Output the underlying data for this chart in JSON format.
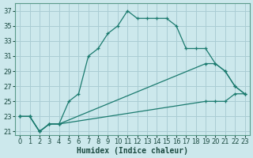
{
  "xlabel": "Humidex (Indice chaleur)",
  "bg_color": "#cce8ec",
  "grid_color": "#aacdd4",
  "line_color": "#1a7a6e",
  "xlim": [
    -0.5,
    23.5
  ],
  "ylim": [
    20.5,
    38.0
  ],
  "xticks": [
    0,
    1,
    2,
    3,
    4,
    5,
    6,
    7,
    8,
    9,
    10,
    11,
    12,
    13,
    14,
    15,
    16,
    17,
    18,
    19,
    20,
    21,
    22,
    23
  ],
  "yticks": [
    21,
    23,
    25,
    27,
    29,
    31,
    33,
    35,
    37
  ],
  "series1": [
    [
      0,
      23
    ],
    [
      1,
      23
    ],
    [
      2,
      21
    ],
    [
      3,
      22
    ],
    [
      4,
      22
    ],
    [
      5,
      25
    ],
    [
      6,
      26
    ],
    [
      7,
      31
    ],
    [
      8,
      32
    ],
    [
      9,
      34
    ],
    [
      10,
      35
    ],
    [
      11,
      37
    ],
    [
      12,
      36
    ],
    [
      13,
      36
    ],
    [
      14,
      36
    ],
    [
      15,
      36
    ],
    [
      16,
      35
    ],
    [
      17,
      32
    ],
    [
      18,
      32
    ],
    [
      19,
      32
    ],
    [
      20,
      30
    ],
    [
      21,
      29
    ],
    [
      22,
      27
    ],
    [
      23,
      26
    ]
  ],
  "series2": [
    [
      0,
      23
    ],
    [
      1,
      23
    ],
    [
      2,
      21
    ],
    [
      3,
      22
    ],
    [
      4,
      22
    ],
    [
      19,
      30
    ],
    [
      20,
      30
    ],
    [
      21,
      29
    ],
    [
      22,
      27
    ],
    [
      23,
      26
    ]
  ],
  "series3": [
    [
      0,
      23
    ],
    [
      1,
      23
    ],
    [
      2,
      21
    ],
    [
      3,
      22
    ],
    [
      4,
      22
    ],
    [
      19,
      25
    ],
    [
      20,
      25
    ],
    [
      21,
      25
    ],
    [
      22,
      26
    ],
    [
      23,
      26
    ]
  ],
  "axis_fontsize": 7,
  "tick_fontsize": 6
}
